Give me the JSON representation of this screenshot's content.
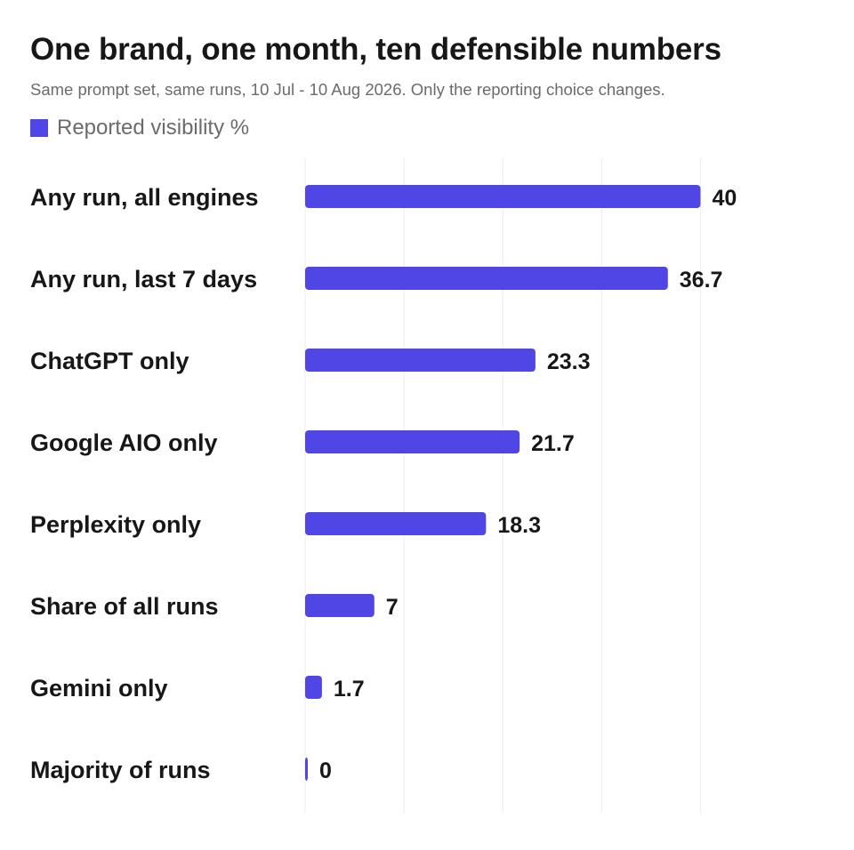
{
  "colors": {
    "bar": "#4f46e5",
    "grid": "#ececec",
    "text": "#171717",
    "muted": "#6b6b6b"
  },
  "chart_data": {
    "type": "bar",
    "orientation": "horizontal",
    "title": "One brand, one month, ten defensible numbers",
    "subtitle": "Same prompt set, same runs, 10 Jul - 10 Aug 2026. Only the reporting choice changes.",
    "legend": {
      "label": "Reported visibility %",
      "placement": "top-left"
    },
    "categories": [
      "Any run, all engines",
      "Any run, last 7 days",
      "ChatGPT only",
      "Google AIO only",
      "Perplexity only",
      "Share of all runs",
      "Gemini only",
      "Majority of runs"
    ],
    "series": [
      {
        "name": "Reported visibility %",
        "values": [
          40,
          36.7,
          23.3,
          21.7,
          18.3,
          7,
          1.7,
          0
        ]
      }
    ],
    "value_labels": [
      "40",
      "36.7",
      "23.3",
      "21.7",
      "18.3",
      "7",
      "1.7",
      "0"
    ],
    "xlim": [
      0,
      45
    ],
    "grid": true,
    "axis_ticks_shown": false
  }
}
